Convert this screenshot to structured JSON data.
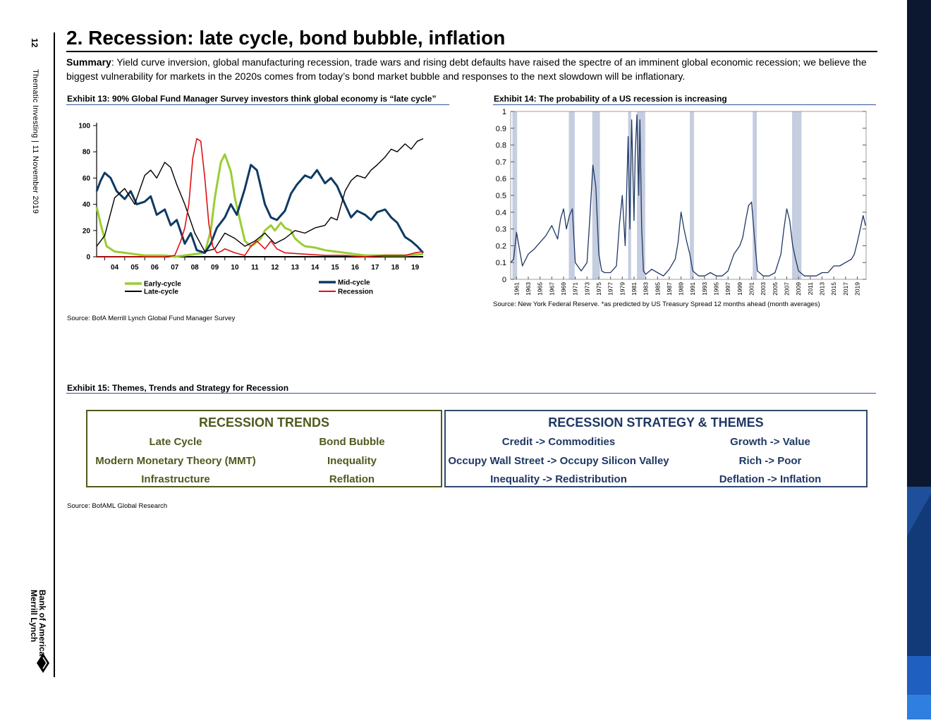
{
  "sidebar": {
    "page_number": "12",
    "running_head": "Thematic Investing | 11 November 2019",
    "logo_line1": "Bank of America",
    "logo_line2": "Merrill Lynch"
  },
  "section": {
    "title": "2. Recession: late cycle, bond bubble, inflation",
    "summary_label": "Summary",
    "summary_text": ": Yield curve inversion, global manufacturing recession, trade wars and rising debt defaults have raised the spectre of an imminent global economic recession; we believe the biggest vulnerability for markets in the 2020s comes from today’s bond market bubble and responses to the next slowdown will be inflationary."
  },
  "exhibit13": {
    "title": "Exhibit 13: 90% Global Fund Manager Survey investors think global economy is “late cycle”",
    "source": "Source: BofA Merrill Lynch Global Fund Manager Survey"
  },
  "exhibit14": {
    "title": "Exhibit 14: The probability of a US recession is increasing",
    "source": "Source: New York Federal Reserve. *as predicted by US Treasury Spread 12 months ahead (month averages)"
  },
  "exhibit15": {
    "title": "Exhibit 15: Themes, Trends and Strategy for Recession",
    "source": "Source: BofAML Global Research",
    "trends": {
      "title": "RECESSION TRENDS",
      "items": [
        "Late Cycle",
        "Bond Bubble",
        "Modern Monetary Theory (MMT)",
        "Inequality",
        "Infrastructure",
        "Reflation"
      ]
    },
    "strategy": {
      "title": "RECESSION STRATEGY & THEMES",
      "items": [
        "Credit -> Commodities",
        "Growth -> Value",
        "Occupy Wall Street -> Occupy Silicon Valley",
        "Rich -> Poor",
        "Inequality -> Redistribution",
        "Deflation -> Inflation"
      ]
    }
  },
  "colors": {
    "olive": "#4f5a1e",
    "navy": "#1f3864",
    "early": "#9acd32",
    "mid": "#0f3a63",
    "late": "#000000",
    "recession": "#e01010",
    "shade": "#c5cde0"
  },
  "chart_data": [
    {
      "type": "line",
      "x_ticks": [
        "04",
        "05",
        "06",
        "07",
        "08",
        "09",
        "10",
        "11",
        "12",
        "13",
        "14",
        "15",
        "16",
        "17",
        "18",
        "19"
      ],
      "y_ticks": [
        0,
        20,
        40,
        60,
        80,
        100
      ],
      "ylim": [
        0,
        100
      ],
      "xlim": [
        2003.6,
        2019.9
      ],
      "legend_position": "bottom",
      "series": [
        {
          "name": "Early-cycle",
          "x": [
            2003.6,
            2003.8,
            2004.1,
            2004.5,
            2005,
            2005.5,
            2006,
            2007,
            2007.5,
            2008,
            2008.5,
            2009,
            2009.3,
            2009.5,
            2009.8,
            2010,
            2010.3,
            2010.5,
            2010.8,
            2011,
            2011.3,
            2011.5,
            2011.8,
            2012,
            2012.3,
            2012.5,
            2012.8,
            2013,
            2013.3,
            2013.5,
            2013.8,
            2014,
            2014.5,
            2015,
            2015.5,
            2016,
            2016.5,
            2017,
            2018,
            2019,
            2019.9
          ],
          "values": [
            38,
            25,
            8,
            4,
            3,
            2,
            1,
            1,
            0,
            1,
            2,
            3,
            20,
            45,
            72,
            78,
            65,
            45,
            25,
            12,
            8,
            10,
            14,
            20,
            24,
            20,
            26,
            22,
            20,
            14,
            10,
            8,
            7,
            5,
            4,
            3,
            2,
            1,
            1,
            1,
            2
          ]
        },
        {
          "name": "Mid-cycle",
          "x": [
            2003.6,
            2003.8,
            2004,
            2004.3,
            2004.6,
            2005,
            2005.3,
            2005.6,
            2006,
            2006.3,
            2006.6,
            2007,
            2007.3,
            2007.6,
            2008,
            2008.3,
            2008.6,
            2009,
            2009.3,
            2009.6,
            2010,
            2010.3,
            2010.6,
            2011,
            2011.3,
            2011.6,
            2012,
            2012.3,
            2012.6,
            2013,
            2013.3,
            2013.6,
            2014,
            2014.3,
            2014.6,
            2015,
            2015.3,
            2015.6,
            2016,
            2016.3,
            2016.6,
            2017,
            2017.3,
            2017.6,
            2018,
            2018.3,
            2018.6,
            2019,
            2019.3,
            2019.6,
            2019.9
          ],
          "values": [
            50,
            58,
            64,
            60,
            50,
            44,
            50,
            40,
            42,
            46,
            32,
            36,
            24,
            28,
            10,
            18,
            5,
            3,
            10,
            22,
            30,
            40,
            32,
            52,
            70,
            66,
            40,
            30,
            28,
            35,
            48,
            55,
            62,
            60,
            66,
            56,
            60,
            54,
            40,
            30,
            35,
            32,
            28,
            34,
            36,
            30,
            26,
            15,
            12,
            8,
            3
          ]
        },
        {
          "name": "Late-cycle",
          "x": [
            2003.6,
            2004,
            2004.5,
            2005,
            2005.5,
            2006,
            2006.3,
            2006.6,
            2007,
            2007.3,
            2007.6,
            2008,
            2008.5,
            2009,
            2009.5,
            2010,
            2010.5,
            2011,
            2011.5,
            2012,
            2012.5,
            2013,
            2013.5,
            2014,
            2014.5,
            2015,
            2015.3,
            2015.6,
            2016,
            2016.3,
            2016.6,
            2017,
            2017.3,
            2017.6,
            2018,
            2018.3,
            2018.6,
            2019,
            2019.3,
            2019.6,
            2019.9
          ],
          "values": [
            8,
            16,
            45,
            52,
            40,
            62,
            66,
            60,
            72,
            68,
            55,
            40,
            18,
            4,
            6,
            18,
            14,
            8,
            12,
            18,
            10,
            14,
            20,
            18,
            22,
            24,
            30,
            28,
            50,
            58,
            62,
            60,
            66,
            70,
            76,
            82,
            80,
            86,
            82,
            88,
            90
          ]
        },
        {
          "name": "Recession",
          "x": [
            2003.6,
            2004,
            2005,
            2006,
            2007,
            2007.5,
            2007.8,
            2008,
            2008.2,
            2008.4,
            2008.6,
            2008.8,
            2009,
            2009.2,
            2009.4,
            2009.6,
            2009.8,
            2010,
            2010.5,
            2011,
            2011.3,
            2011.6,
            2012,
            2012.3,
            2012.6,
            2013,
            2014,
            2015,
            2016,
            2017,
            2018,
            2019,
            2019.5,
            2019.9
          ],
          "values": [
            0,
            0,
            0,
            0,
            0,
            1,
            12,
            22,
            40,
            75,
            90,
            88,
            60,
            25,
            8,
            3,
            4,
            6,
            3,
            1,
            8,
            12,
            6,
            12,
            6,
            3,
            2,
            1,
            1,
            0,
            1,
            1,
            3,
            4
          ]
        }
      ]
    },
    {
      "type": "line",
      "x_ticks": [
        "1961",
        "1963",
        "1965",
        "1967",
        "1969",
        "1971",
        "1973",
        "1975",
        "1977",
        "1979",
        "1981",
        "1983",
        "1985",
        "1987",
        "1989",
        "1991",
        "1993",
        "1995",
        "1997",
        "1999",
        "2001",
        "2003",
        "2005",
        "2007",
        "2009",
        "2011",
        "2013",
        "2015",
        "2017",
        "2019"
      ],
      "y_ticks": [
        0,
        0.1,
        0.2,
        0.3,
        0.4,
        0.5,
        0.6,
        0.7,
        0.8,
        0.9,
        1
      ],
      "ylim": [
        0,
        1
      ],
      "xlim": [
        1960,
        2020.5
      ],
      "recession_shading": [
        [
          1960.3,
          1961.1
        ],
        [
          1969.9,
          1970.9
        ],
        [
          1973.9,
          1975.2
        ],
        [
          1980.0,
          1980.5
        ],
        [
          1981.5,
          1982.9
        ],
        [
          1990.5,
          1991.2
        ],
        [
          2001.2,
          2001.9
        ],
        [
          2007.9,
          2009.5
        ]
      ],
      "series": [
        {
          "name": "",
          "x": [
            1960,
            1960.5,
            1961,
            1962,
            1963,
            1964,
            1965,
            1966,
            1967,
            1967.5,
            1968,
            1968.5,
            1969,
            1969.5,
            1970,
            1970.5,
            1971,
            1972,
            1973,
            1973.5,
            1974,
            1974.5,
            1975,
            1975.5,
            1976,
            1977,
            1978,
            1978.5,
            1979,
            1979.5,
            1980,
            1980.3,
            1980.6,
            1981,
            1981.2,
            1981.5,
            1981.8,
            1982,
            1982.3,
            1982.6,
            1983,
            1984,
            1985,
            1986,
            1987,
            1988,
            1988.5,
            1989,
            1989.5,
            1990,
            1990.5,
            1991,
            1992,
            1993,
            1994,
            1995,
            1996,
            1997,
            1998,
            1999,
            1999.5,
            2000,
            2000.5,
            2001,
            2001.5,
            2002,
            2003,
            2004,
            2005,
            2006,
            2006.5,
            2007,
            2007.5,
            2008,
            2008.5,
            2009,
            2010,
            2011,
            2012,
            2013,
            2014,
            2015,
            2016,
            2017,
            2018,
            2018.5,
            2019,
            2019.5,
            2020,
            2020.4
          ],
          "values": [
            0.1,
            0.12,
            0.28,
            0.08,
            0.15,
            0.18,
            0.22,
            0.26,
            0.32,
            0.28,
            0.24,
            0.36,
            0.42,
            0.3,
            0.38,
            0.42,
            0.1,
            0.05,
            0.1,
            0.38,
            0.68,
            0.55,
            0.15,
            0.05,
            0.04,
            0.04,
            0.08,
            0.32,
            0.5,
            0.2,
            0.85,
            0.3,
            0.95,
            0.35,
            0.75,
            0.98,
            0.5,
            0.95,
            0.3,
            0.05,
            0.03,
            0.06,
            0.04,
            0.02,
            0.06,
            0.12,
            0.22,
            0.4,
            0.3,
            0.22,
            0.15,
            0.05,
            0.02,
            0.02,
            0.04,
            0.02,
            0.02,
            0.05,
            0.15,
            0.2,
            0.25,
            0.35,
            0.44,
            0.46,
            0.25,
            0.05,
            0.02,
            0.02,
            0.04,
            0.15,
            0.3,
            0.42,
            0.35,
            0.2,
            0.12,
            0.05,
            0.02,
            0.02,
            0.02,
            0.04,
            0.04,
            0.08,
            0.08,
            0.1,
            0.12,
            0.15,
            0.22,
            0.3,
            0.38,
            0.32
          ]
        }
      ]
    }
  ]
}
